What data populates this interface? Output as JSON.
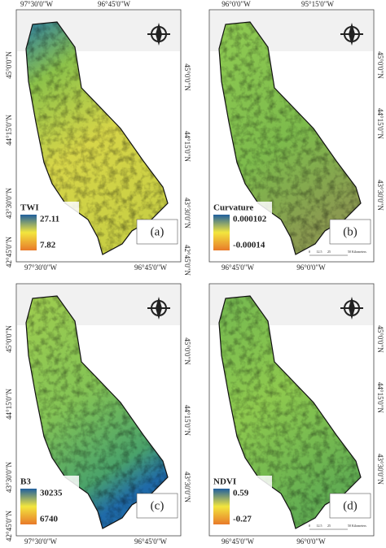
{
  "panels": [
    {
      "letter": "(a)",
      "legend_title": "TWI",
      "legend_max": 27.11,
      "legend_min": 7.82,
      "top_labels": [
        "97°30'0\"W",
        "96°45'0\"W"
      ],
      "bottom_labels": [
        "97°30'0\"W",
        "96°45'0\"W"
      ],
      "left_labels": [
        "45°0'0\"N",
        "44°15'0\"N",
        "43°30'0\"N",
        "42°45'0\"N"
      ],
      "right_labels": [
        "45°0'0\"N",
        "44°15'0\"N",
        "43°30'0\"N",
        "42°45'0\"N"
      ],
      "legend_colors": [
        "#1f5f9e",
        "#f3e63e",
        "#e87a2a"
      ]
    },
    {
      "letter": "(b)",
      "legend_title": "Curvature",
      "legend_max": 0.000102,
      "legend_min": -0.00014,
      "top_labels": [
        "96°0'0\"W",
        "95°15'0\"W"
      ],
      "bottom_labels": [
        "96°45'0\"W",
        "96°0'0\"W"
      ],
      "right_labels": [
        "45°0'0\"N",
        "44°15'0\"N",
        "43°30'0\"N"
      ],
      "legend_colors": [
        "#1f5f9e",
        "#f3e63e",
        "#e87a2a"
      ],
      "scale_bar": {
        "ticks": [
          "0",
          "12.5",
          "25",
          "50 Kilometers"
        ]
      }
    },
    {
      "letter": "(c)",
      "legend_title": "B3",
      "legend_max": 30235,
      "legend_min": 6740,
      "bottom_labels": [
        "97°30'0\"W",
        "96°45'0\"W"
      ],
      "left_labels": [
        "45°0'0\"N",
        "44°15'0\"N",
        "43°30'0\"N",
        "42°45'0\"N"
      ],
      "right_labels": [
        "45°0'0\"N",
        "44°15'0\"N",
        "43°30'0\"N"
      ],
      "legend_colors": [
        "#1f5f9e",
        "#f3e63e",
        "#e87a2a"
      ]
    },
    {
      "letter": "(d)",
      "legend_title": "NDVI",
      "legend_max": 0.59,
      "legend_min": -0.27,
      "bottom_labels": [
        "96°45'0\"W",
        "96°0'0\"W"
      ],
      "right_labels": [
        "45°0'0\"N",
        "44°15'0\"N",
        "43°30'0\"N"
      ],
      "legend_colors": [
        "#1f5f9e",
        "#f3e63e",
        "#e87a2a"
      ],
      "scale_bar": {
        "ticks": [
          "0",
          "12.5",
          "25",
          "50 Kilometers"
        ]
      }
    }
  ]
}
